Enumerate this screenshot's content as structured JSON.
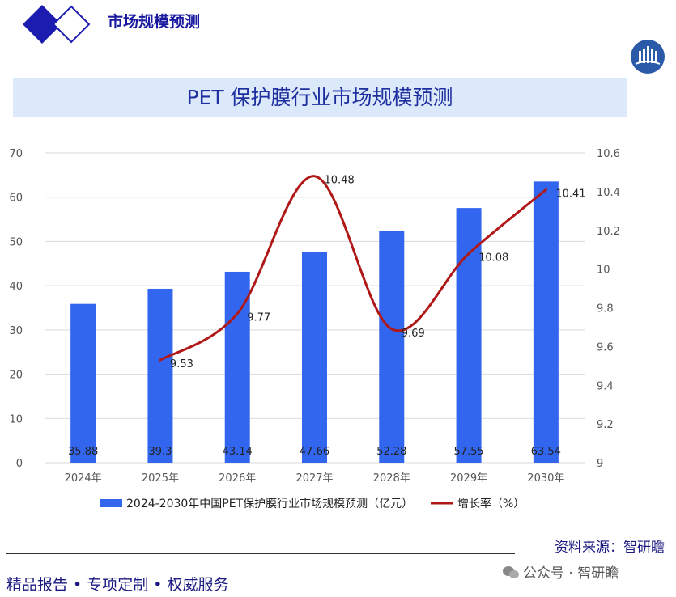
{
  "header": {
    "title": "市场规模预测"
  },
  "footer": {
    "source": "资料来源：智研瞻",
    "slogan_a": "精品报告",
    "slogan_b": "专项定制",
    "slogan_c": "权威服务",
    "wechat": "公众号 · 智研瞻"
  },
  "colors": {
    "bar": "#3366ee",
    "line": "#b01818",
    "banner": "#dce9fa",
    "title": "#1e2fa0"
  },
  "chart_data": {
    "type": "bar",
    "title": "PET 保护膜行业市场规模预测",
    "categories": [
      "2024年",
      "2025年",
      "2026年",
      "2027年",
      "2028年",
      "2029年",
      "2030年"
    ],
    "series": [
      {
        "name": "2024-2030年中国PET保护膜行业市场规模预测（亿元）",
        "type": "bar",
        "axis": "left",
        "values": [
          35.88,
          39.3,
          43.14,
          47.66,
          52.28,
          57.55,
          63.54
        ]
      },
      {
        "name": "增长率（%）",
        "type": "line",
        "axis": "right",
        "values": [
          null,
          9.53,
          9.77,
          10.48,
          9.69,
          10.08,
          10.41
        ]
      }
    ],
    "ylim": [
      0,
      70
    ],
    "y_ticks": [
      0,
      10,
      20,
      30,
      40,
      50,
      60,
      70
    ],
    "y2lim": [
      9,
      10.6
    ],
    "y2_ticks": [
      "9",
      "9.2",
      "9.4",
      "9.6",
      "9.8",
      "10",
      "10.2",
      "10.4",
      "10.6"
    ],
    "legend_position": "bottom"
  }
}
